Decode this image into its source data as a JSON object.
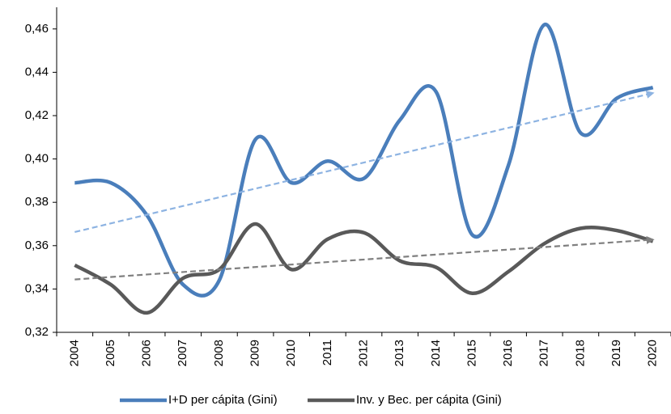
{
  "chart_data": {
    "type": "line",
    "categories": [
      "2004",
      "2005",
      "2006",
      "2007",
      "2008",
      "2009",
      "2010",
      "2011",
      "2012",
      "2013",
      "2014",
      "2015",
      "2016",
      "2017",
      "2018",
      "2019",
      "2020"
    ],
    "series": [
      {
        "name": "I+D per cápita (Gini)",
        "color": "#4a7ebb",
        "trend_color": "#8db3e2",
        "values": [
          0.389,
          0.389,
          0.374,
          0.342,
          0.344,
          0.409,
          0.389,
          0.399,
          0.391,
          0.418,
          0.431,
          0.365,
          0.397,
          0.462,
          0.412,
          0.428,
          0.433
        ]
      },
      {
        "name": "Inv. y Bec. per cápita (Gini)",
        "color": "#595959",
        "trend_color": "#808080",
        "values": [
          0.351,
          0.342,
          0.329,
          0.345,
          0.349,
          0.37,
          0.349,
          0.363,
          0.366,
          0.353,
          0.35,
          0.338,
          0.348,
          0.361,
          0.368,
          0.367,
          0.362
        ]
      }
    ],
    "ylim": [
      0.32,
      0.47
    ],
    "yticks": [
      {
        "value": 0.32,
        "label": "0,32"
      },
      {
        "value": 0.34,
        "label": "0,34"
      },
      {
        "value": 0.36,
        "label": "0,36"
      },
      {
        "value": 0.38,
        "label": "0,38"
      },
      {
        "value": 0.4,
        "label": "0,40"
      },
      {
        "value": 0.42,
        "label": "0,42"
      },
      {
        "value": 0.44,
        "label": "0,44"
      },
      {
        "value": 0.46,
        "label": "0,46"
      }
    ],
    "trendline": true,
    "smooth": true,
    "legend": "bottom"
  }
}
